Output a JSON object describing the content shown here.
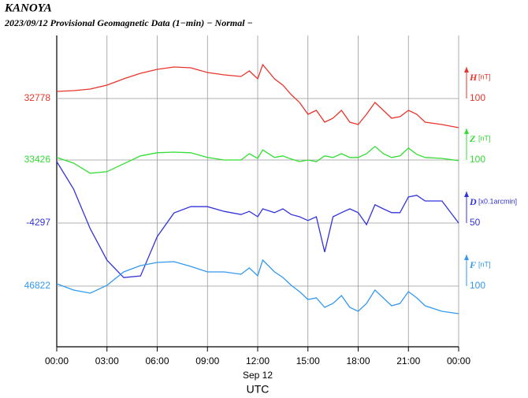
{
  "chart_data": {
    "type": "line",
    "title": "KANOYA",
    "subtitle": "2023/09/12  Provisional Geomagnetic Data (1−min)  − Normal −",
    "x_date_label": "Sep 12",
    "x_label": "UTC",
    "xlim": [
      0,
      24
    ],
    "xticks": [
      {
        "value": 0,
        "label": "00:00"
      },
      {
        "value": 3,
        "label": "03:00"
      },
      {
        "value": 6,
        "label": "06:00"
      },
      {
        "value": 9,
        "label": "09:00"
      },
      {
        "value": 12,
        "label": "12:00"
      },
      {
        "value": 15,
        "label": "15:00"
      },
      {
        "value": 18,
        "label": "18:00"
      },
      {
        "value": 21,
        "label": "21:00"
      },
      {
        "value": 24,
        "label": "00:00"
      }
    ],
    "grid": true,
    "x": [
      0,
      1,
      2,
      3,
      4,
      5,
      6,
      7,
      8,
      9,
      10,
      11,
      11.5,
      12,
      12.3,
      13,
      13.5,
      14,
      14.5,
      15,
      15.5,
      16,
      16.5,
      17,
      17.5,
      18,
      18.5,
      19,
      19.5,
      20,
      20.5,
      21,
      21.5,
      22,
      23,
      24
    ],
    "series": [
      {
        "name": "H",
        "unit": "[nT]",
        "scale": 100,
        "color": "#e8352b",
        "ylim": [
          31990.5,
          32978
        ],
        "yticks": [
          32778
        ],
        "values": [
          32800.5,
          32803,
          32808,
          32820.5,
          32840.5,
          32858,
          32870.5,
          32878,
          32875.5,
          32860.5,
          32853,
          32848,
          32865.5,
          32840.5,
          32885.5,
          32840.5,
          32820.5,
          32790.5,
          32765.5,
          32728,
          32740.5,
          32703,
          32715.5,
          32740.5,
          32703,
          32695.5,
          32728,
          32765.5,
          32740.5,
          32715.5,
          32720.5,
          32740.5,
          32728,
          32703,
          32695.5,
          32685.5
        ]
      },
      {
        "name": "Z",
        "unit": "[nT]",
        "scale": 100,
        "color": "#33dd33",
        "ylim": [
          32833.5,
          33821
        ],
        "yticks": [
          33426
        ],
        "values": [
          33434,
          33416,
          33384,
          33389,
          33414,
          33439,
          33449,
          33451,
          33449,
          33434,
          33426,
          33426,
          33446,
          33431,
          33458,
          33434,
          33439,
          33429,
          33421,
          33426,
          33421,
          33439,
          33434,
          33446,
          33434,
          33434,
          33446,
          33469,
          33446,
          33434,
          33439,
          33464,
          33444,
          33434,
          33431,
          33424
        ]
      },
      {
        "name": "D",
        "unit": "[x0.1arcmin]",
        "scale": 50,
        "color": "#3333dd",
        "ylim": [
          -4493.25,
          -3999.5
        ],
        "yticks": [
          -4297
        ],
        "values": [
          -4199.5,
          -4243,
          -4306,
          -4356,
          -4383.5,
          -4381,
          -4318.5,
          -4281,
          -4271,
          -4271,
          -4278.5,
          -4283.5,
          -4278.5,
          -4287,
          -4274.5,
          -4280.5,
          -4274.5,
          -4283.5,
          -4287,
          -4293,
          -4287,
          -4343,
          -4287,
          -4280.5,
          -4274.5,
          -4280.5,
          -4299.5,
          -4268,
          -4274.5,
          -4280.5,
          -4280.5,
          -4255.5,
          -4253,
          -4262,
          -4262,
          -4297
        ]
      },
      {
        "name": "F",
        "unit": "[nT]",
        "scale": 100,
        "color": "#3399ee",
        "ylim": [
          46629.5,
          47617
        ],
        "yticks": [
          46822
        ],
        "values": [
          46829.5,
          46809.5,
          46799.5,
          46824.5,
          46867,
          46887,
          46897,
          46899.5,
          46884.5,
          46867,
          46867,
          46859.5,
          46879.5,
          46854.5,
          46904.5,
          46867,
          46849.5,
          46824.5,
          46804.5,
          46779.5,
          46784.5,
          46754.5,
          46767,
          46792,
          46754.5,
          46742,
          46767,
          46809.5,
          46784.5,
          46759.5,
          46767,
          46804.5,
          46784.5,
          46759.5,
          46742,
          46734.5
        ]
      }
    ]
  }
}
